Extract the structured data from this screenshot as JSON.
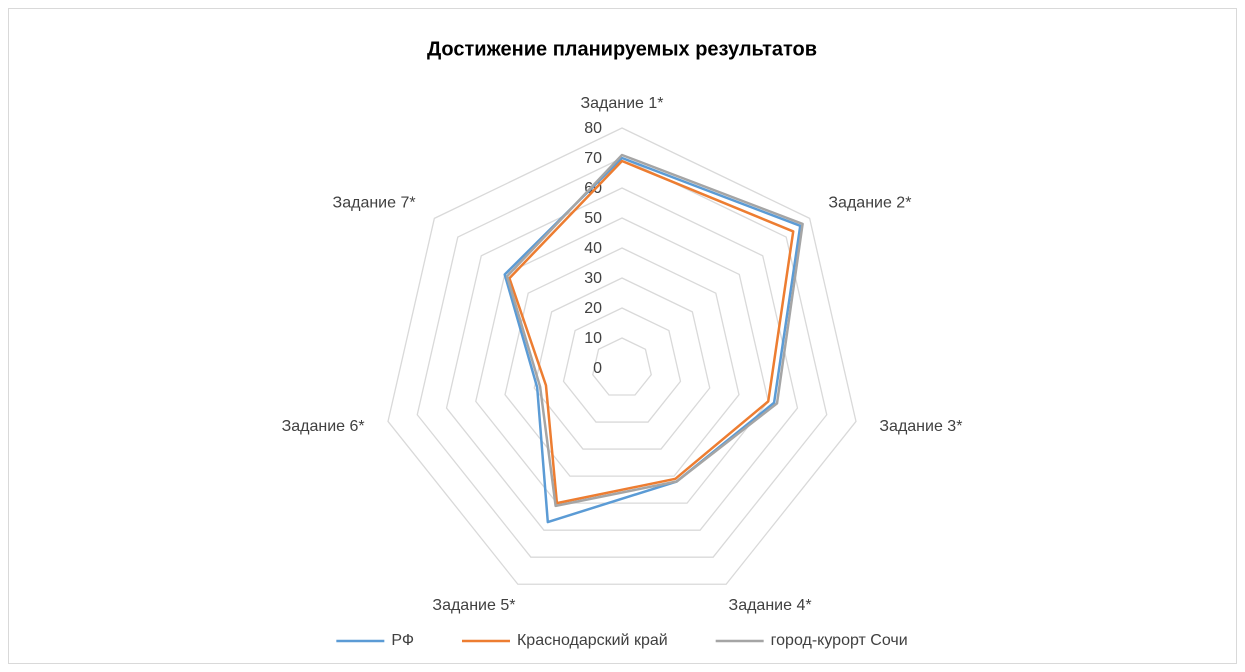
{
  "chart_data": {
    "type": "radar",
    "title": "Достижение планируемых результатов",
    "categories": [
      "Задание 1*",
      "Задание 2*",
      "Задание 3*",
      "Задание 4*",
      "Задание 5*",
      "Задание 6*",
      "Задание 7*"
    ],
    "series": [
      {
        "name": "РФ",
        "color": "#5b9bd5",
        "values": [
          70,
          76,
          52,
          42,
          57,
          29,
          50
        ]
      },
      {
        "name": "Краснодарский край",
        "color": "#ed7d31",
        "values": [
          69,
          73,
          50,
          41,
          50,
          26,
          48
        ]
      },
      {
        "name": "город-курорт Сочи",
        "color": "#a5a5a5",
        "values": [
          71,
          77,
          53,
          42,
          51,
          28,
          49
        ]
      }
    ],
    "ylim": [
      0,
      80
    ],
    "yticks": [
      0,
      10,
      20,
      30,
      40,
      50,
      60,
      70,
      80
    ],
    "grid": true,
    "legend": "bottom"
  }
}
